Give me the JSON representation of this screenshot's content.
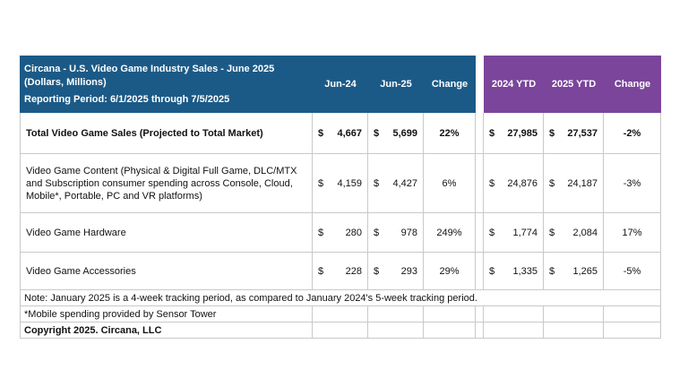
{
  "header": {
    "title": "Circana - U.S. Video Game Industry Sales - June 2025",
    "subtitle": "(Dollars, Millions)",
    "period": "Reporting Period: 6/1/2025 through 7/5/2025",
    "columns": [
      "Jun-24",
      "Jun-25",
      "Change"
    ],
    "ytd_columns": [
      "2024 YTD",
      "2025 YTD",
      "Change"
    ]
  },
  "currency": "$",
  "rows": [
    {
      "label": "Total Video Game Sales (Projected to Total Market)",
      "jun24": "4,667",
      "jun25": "5,699",
      "change": "22%",
      "ytd24": "27,985",
      "ytd25": "27,537",
      "ytd_change": "-2%"
    },
    {
      "label": "Video Game Content (Physical & Digital Full Game, DLC/MTX and Subscription consumer spending across Console, Cloud, Mobile*, Portable, PC and VR platforms)",
      "jun24": "4,159",
      "jun25": "4,427",
      "change": "6%",
      "ytd24": "24,876",
      "ytd25": "24,187",
      "ytd_change": "-3%"
    },
    {
      "label": "Video Game Hardware",
      "jun24": "280",
      "jun25": "978",
      "change": "249%",
      "ytd24": "1,774",
      "ytd25": "2,084",
      "ytd_change": "17%"
    },
    {
      "label": "Video Game Accessories",
      "jun24": "228",
      "jun25": "293",
      "change": "29%",
      "ytd24": "1,335",
      "ytd25": "1,265",
      "ytd_change": "-5%"
    }
  ],
  "notes": {
    "note1": "Note: January 2025 is a 4-week tracking period, as compared to January 2024's 5-week tracking period.",
    "note2": "*Mobile spending provided by Sensor Tower",
    "copyright": "Copyright 2025. Circana, LLC"
  },
  "colors": {
    "blue_header": "#1b5a87",
    "purple_header": "#7a459b"
  }
}
